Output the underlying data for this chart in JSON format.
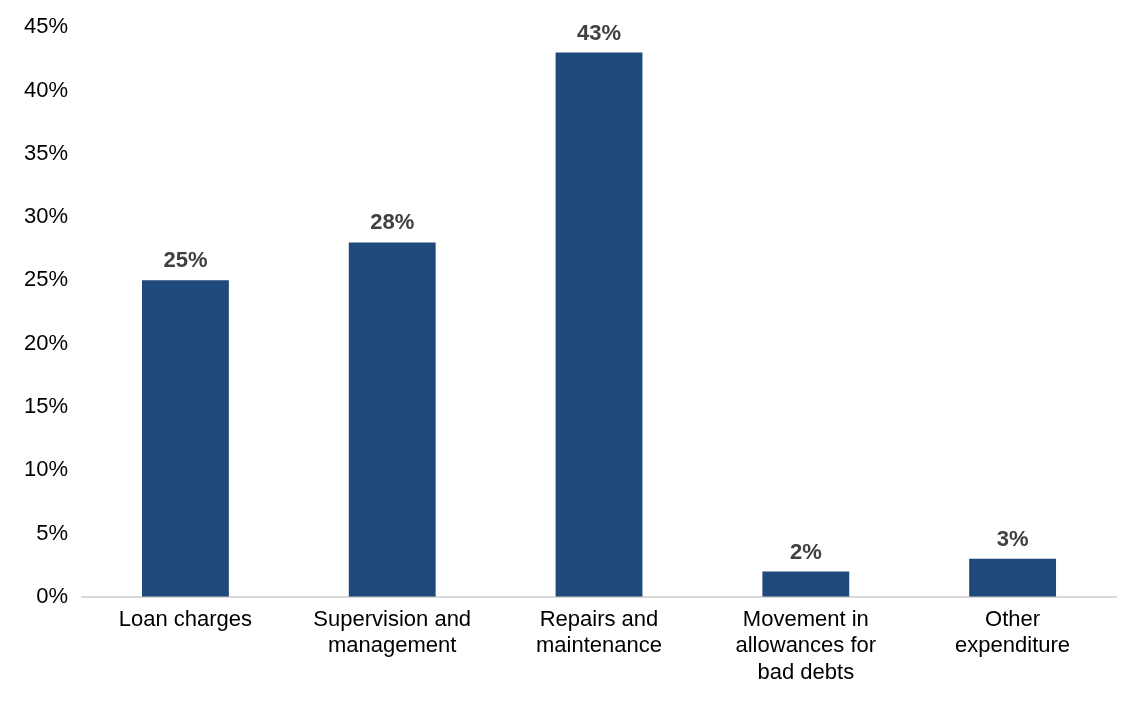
{
  "chart_data": {
    "type": "bar",
    "categories": [
      "Loan charges",
      "Supervision and management",
      "Repairs and maintenance",
      "Movement in allowances for bad debts",
      "Other expenditure"
    ],
    "values": [
      25,
      28,
      43,
      2,
      3
    ],
    "value_labels": [
      "25%",
      "28%",
      "43%",
      "2%",
      "3%"
    ],
    "color": "#20497b",
    "grid": false,
    "legend": false,
    "ylim": [
      0,
      45
    ],
    "yticks": [
      {
        "value": 0,
        "label": "0%"
      },
      {
        "value": 5,
        "label": "5%"
      },
      {
        "value": 10,
        "label": "10%"
      },
      {
        "value": 15,
        "label": "15%"
      },
      {
        "value": 20,
        "label": "20%"
      },
      {
        "value": 25,
        "label": "25%"
      },
      {
        "value": 30,
        "label": "30%"
      },
      {
        "value": 35,
        "label": "35%"
      },
      {
        "value": 40,
        "label": "40%"
      },
      {
        "value": 45,
        "label": "45%"
      }
    ]
  }
}
